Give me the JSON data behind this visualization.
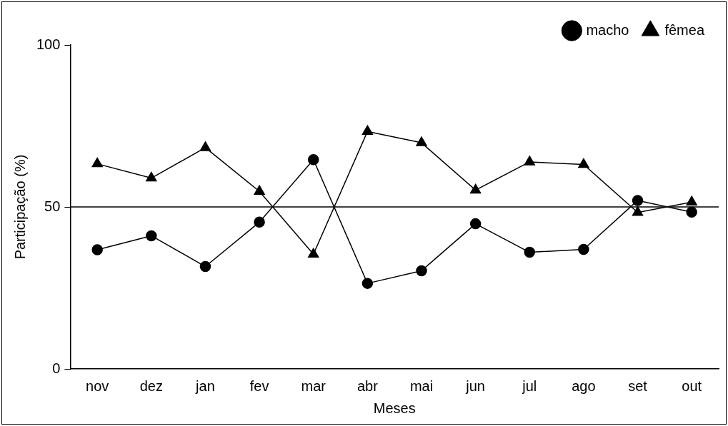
{
  "chart_data": {
    "type": "line",
    "xlabel": "Meses",
    "ylabel": "Participação (%)",
    "categories": [
      "nov",
      "dez",
      "jan",
      "fev",
      "mar",
      "abr",
      "mai",
      "jun",
      "jul",
      "ago",
      "set",
      "out"
    ],
    "series": [
      {
        "name": "macho",
        "color": "#000000",
        "marker": "circle",
        "values": [
          36.8,
          41.1,
          31.6,
          45.3,
          64.6,
          26.4,
          30.3,
          44.8,
          36.0,
          36.9,
          52.0,
          48.4
        ]
      },
      {
        "name": "fêmea",
        "color": "#000000",
        "marker": "triangle",
        "values": [
          63.3,
          58.9,
          68.3,
          54.8,
          35.4,
          73.3,
          69.8,
          55.2,
          63.9,
          63.1,
          48.3,
          51.5
        ]
      }
    ],
    "ylim": [
      0,
      100
    ],
    "yticks": [
      0,
      50,
      100
    ],
    "grid": false,
    "legend": "top right",
    "line_style": "solid",
    "ref_lines": [
      {
        "axis": "y",
        "value": 50,
        "color": "#000000"
      }
    ]
  }
}
